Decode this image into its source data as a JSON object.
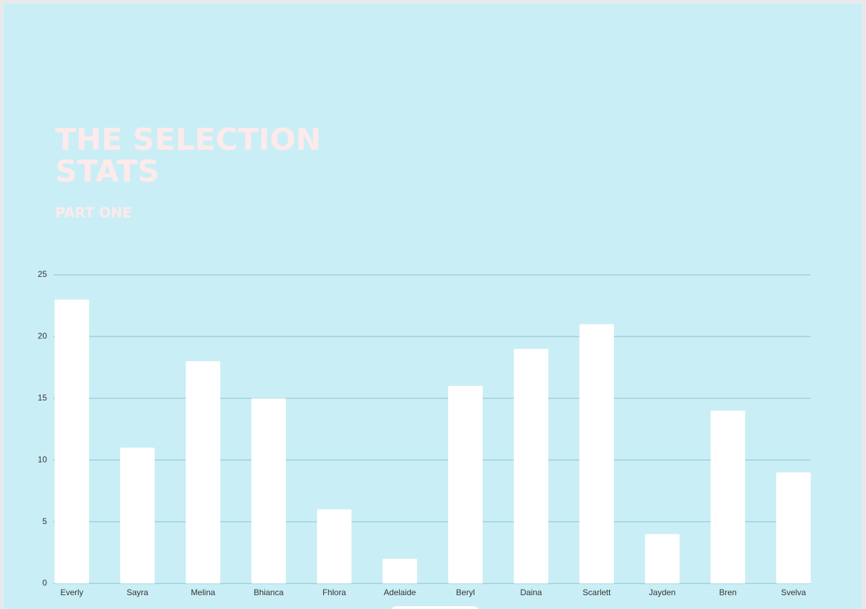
{
  "chart_data": {
    "type": "bar",
    "title": "THE SELECTION STATS",
    "subtitle": "PART ONE",
    "categories": [
      "Everly",
      "Sayra",
      "Melina",
      "Bhianca",
      "Fhlora",
      "Adelaide",
      "Beryl",
      "Daina",
      "Scarlett",
      "Jayden",
      "Bren",
      "Svelva"
    ],
    "values": [
      23,
      11,
      18,
      15,
      6,
      2,
      16,
      19,
      21,
      4,
      14,
      9
    ],
    "color": "#ffffff",
    "ylim": [
      0,
      25
    ],
    "yticks": [
      0,
      5,
      10,
      15,
      20,
      25
    ],
    "grid": true
  }
}
